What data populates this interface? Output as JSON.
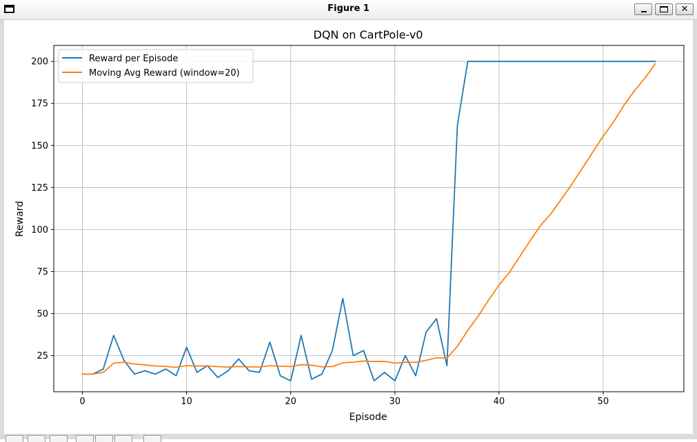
{
  "window": {
    "title": "Figure 1",
    "minimize_icon": "minimize-icon",
    "maximize_icon": "maximize-icon",
    "close_icon": "close-icon",
    "close_label": "✕"
  },
  "chart_data": {
    "type": "line",
    "title": "DQN on CartPole-v0",
    "xlabel": "Episode",
    "ylabel": "Reward",
    "xlim": [
      -2.75,
      57.75
    ],
    "ylim": [
      3.5,
      209.5
    ],
    "xticks": [
      0,
      10,
      20,
      30,
      40,
      50
    ],
    "yticks": [
      25,
      50,
      75,
      100,
      125,
      150,
      175,
      200
    ],
    "grid": true,
    "legend_position": "top-left",
    "x": [
      0,
      1,
      2,
      3,
      4,
      5,
      6,
      7,
      8,
      9,
      10,
      11,
      12,
      13,
      14,
      15,
      16,
      17,
      18,
      19,
      20,
      21,
      22,
      23,
      24,
      25,
      26,
      27,
      28,
      29,
      30,
      31,
      32,
      33,
      34,
      35,
      36,
      37,
      38,
      39,
      40,
      41,
      42,
      43,
      44,
      45,
      46,
      47,
      48,
      49,
      50,
      51,
      52,
      53,
      54,
      55
    ],
    "series": [
      {
        "name": "Reward per Episode",
        "color": "#1f77b4",
        "values": [
          14,
          14,
          17,
          37,
          22,
          14,
          16,
          14,
          17,
          13,
          30,
          15,
          19,
          12,
          16,
          23,
          16,
          15,
          33,
          13,
          10,
          37,
          11,
          14,
          28,
          59,
          25,
          28,
          10,
          15,
          10,
          25,
          13,
          39,
          47,
          19,
          162,
          200,
          200,
          200,
          200,
          200,
          200,
          200,
          200,
          200,
          200,
          200,
          200,
          200,
          200,
          200,
          200,
          200,
          200,
          200
        ]
      },
      {
        "name": "Moving Avg Reward (window=20)",
        "color": "#ff7f0e",
        "values": [
          14,
          14,
          15,
          20.5,
          21,
          20,
          19.5,
          18.8,
          18.6,
          18,
          19,
          18.8,
          18.9,
          18.4,
          18.2,
          18.5,
          18.3,
          18.2,
          19,
          18.7,
          18.5,
          19.6,
          19.3,
          18.3,
          18.5,
          20.7,
          21.1,
          21.8,
          21.5,
          21.6,
          20.5,
          21.1,
          21,
          22.2,
          23.7,
          23.5,
          30.5,
          40,
          48.5,
          58,
          67,
          74.5,
          84,
          93.5,
          102.5,
          109.5,
          118.2,
          127,
          136.5,
          146,
          155.5,
          164,
          174,
          182.5,
          190,
          198.5
        ]
      }
    ]
  }
}
